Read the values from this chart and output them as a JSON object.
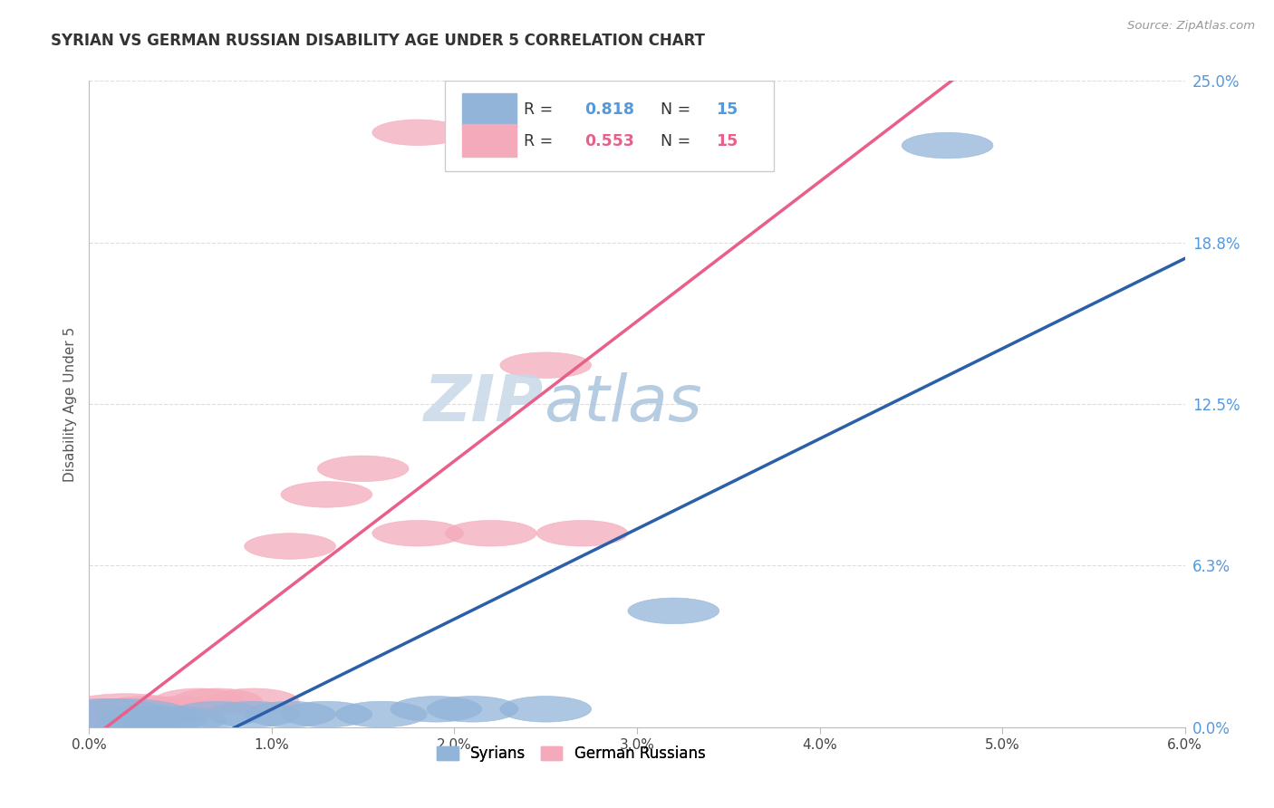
{
  "title": "SYRIAN VS GERMAN RUSSIAN DISABILITY AGE UNDER 5 CORRELATION CHART",
  "source": "Source: ZipAtlas.com",
  "ylabel": "Disability Age Under 5",
  "xlim": [
    0.0,
    0.06
  ],
  "ylim": [
    0.0,
    0.25
  ],
  "xtick_labels": [
    "0.0%",
    "1.0%",
    "2.0%",
    "3.0%",
    "4.0%",
    "5.0%",
    "6.0%"
  ],
  "xtick_vals": [
    0.0,
    0.01,
    0.02,
    0.03,
    0.04,
    0.05,
    0.06
  ],
  "ytick_labels": [
    "0.0%",
    "6.3%",
    "12.5%",
    "18.8%",
    "25.0%"
  ],
  "ytick_vals": [
    0.0,
    0.0625,
    0.125,
    0.1875,
    0.25
  ],
  "blue_R": "0.818",
  "pink_R": "0.553",
  "N": "15",
  "blue_color": "#92B4D9",
  "pink_color": "#F4AABB",
  "blue_line_color": "#2B5FA8",
  "pink_line_color": "#E8608A",
  "dash_color": "#E8B4C8",
  "grid_color": "#DDDDDD",
  "blue_scatter": [
    [
      0.001,
      0.003
    ],
    [
      0.002,
      0.003
    ],
    [
      0.003,
      0.003
    ],
    [
      0.004,
      0.003
    ],
    [
      0.005,
      0.003
    ],
    [
      0.007,
      0.005
    ],
    [
      0.009,
      0.005
    ],
    [
      0.011,
      0.005
    ],
    [
      0.013,
      0.005
    ],
    [
      0.016,
      0.005
    ],
    [
      0.019,
      0.007
    ],
    [
      0.021,
      0.007
    ],
    [
      0.025,
      0.007
    ],
    [
      0.032,
      0.045
    ],
    [
      0.047,
      0.225
    ]
  ],
  "pink_scatter": [
    [
      0.001,
      0.003
    ],
    [
      0.002,
      0.005
    ],
    [
      0.003,
      0.007
    ],
    [
      0.005,
      0.007
    ],
    [
      0.006,
      0.01
    ],
    [
      0.007,
      0.01
    ],
    [
      0.009,
      0.01
    ],
    [
      0.011,
      0.07
    ],
    [
      0.013,
      0.09
    ],
    [
      0.015,
      0.1
    ],
    [
      0.018,
      0.075
    ],
    [
      0.022,
      0.075
    ],
    [
      0.027,
      0.075
    ],
    [
      0.018,
      0.23
    ],
    [
      0.025,
      0.14
    ]
  ],
  "watermark_ZIP": "ZIP",
  "watermark_atlas": "atlas",
  "title_fontsize": 12,
  "label_fontsize": 11,
  "tick_fontsize": 11,
  "source_fontsize": 9.5
}
